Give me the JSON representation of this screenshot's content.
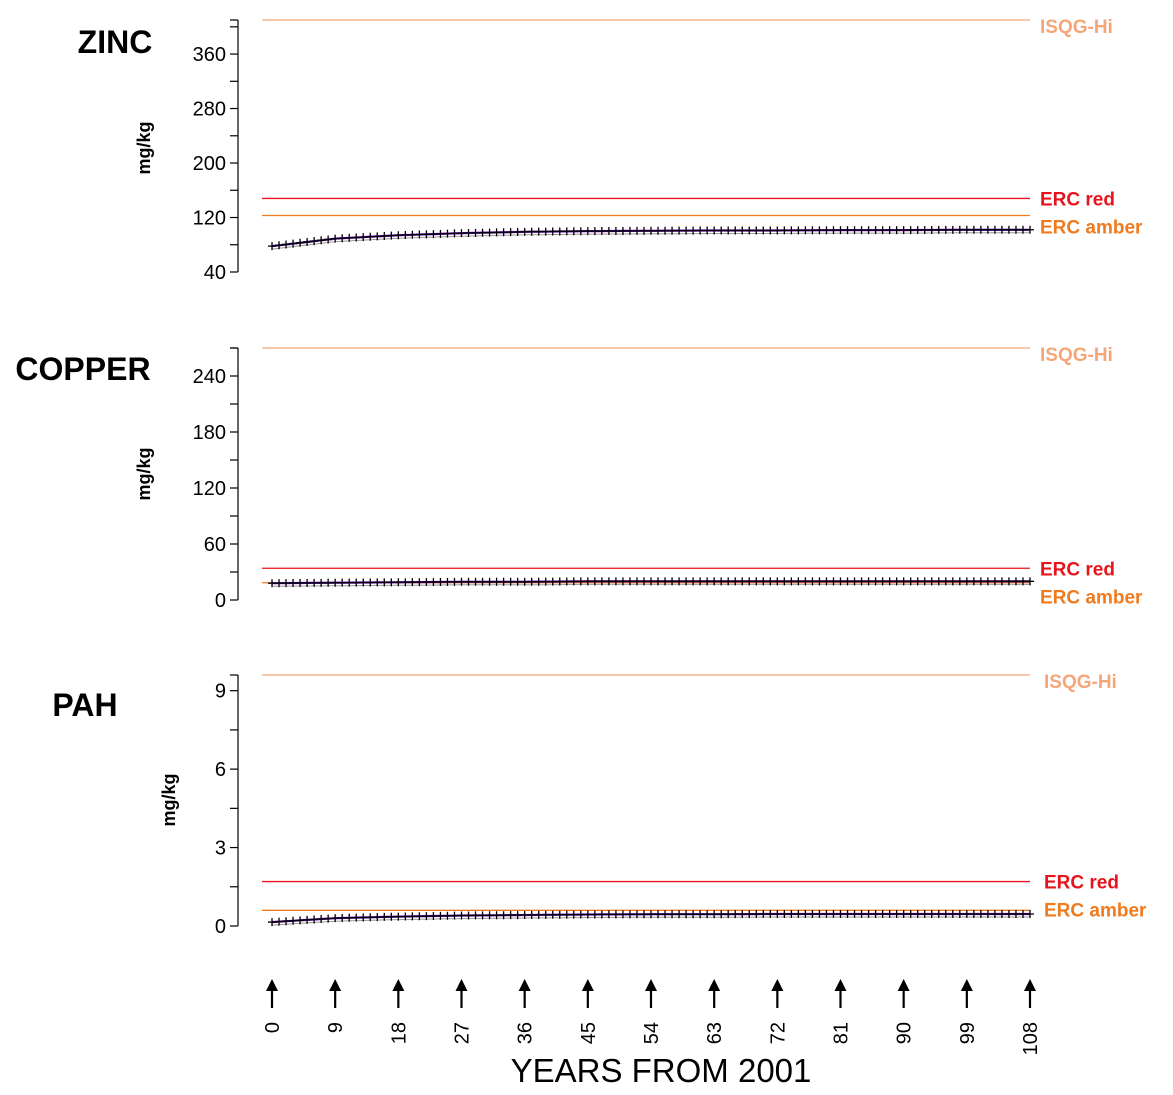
{
  "chart_data": [
    {
      "type": "line",
      "title": "ZINC",
      "ylabel": "mg/kg",
      "ylim": [
        40,
        410
      ],
      "yticks": [
        40,
        120,
        200,
        280,
        360
      ],
      "x": [
        0,
        9,
        18,
        27,
        36,
        45,
        54,
        63,
        72,
        81,
        90,
        99,
        108
      ],
      "series": [
        {
          "values": [
            78,
            89,
            94,
            97,
            99,
            100,
            100.5,
            101,
            101,
            101.5,
            101.5,
            102,
            102
          ]
        }
      ],
      "reference_lines": [
        {
          "label": "ISQG-Hi",
          "value": 410,
          "color": "#f5a678"
        },
        {
          "label": "ERC red",
          "value": 148,
          "color": "#e8141c"
        },
        {
          "label": "ERC amber",
          "value": 123,
          "color": "#f07a1e"
        }
      ]
    },
    {
      "type": "line",
      "title": "COPPER",
      "ylabel": "mg/kg",
      "ylim": [
        0,
        270
      ],
      "yticks": [
        0,
        60,
        120,
        180,
        240
      ],
      "x": [
        0,
        9,
        18,
        27,
        36,
        45,
        54,
        63,
        72,
        81,
        90,
        99,
        108
      ],
      "series": [
        {
          "values": [
            18,
            18.5,
            19,
            19.5,
            19.5,
            20,
            20,
            20,
            20,
            20,
            20,
            20,
            20
          ]
        }
      ],
      "reference_lines": [
        {
          "label": "ISQG-Hi",
          "value": 270,
          "color": "#f5a678"
        },
        {
          "label": "ERC red",
          "value": 34,
          "color": "#e8141c"
        },
        {
          "label": "ERC amber",
          "value": 18.5,
          "color": "#f07a1e"
        }
      ]
    },
    {
      "type": "line",
      "title": "PAH",
      "ylabel": "mg/kg",
      "ylim": [
        0,
        9.6
      ],
      "yticks": [
        0,
        3,
        6,
        9
      ],
      "x": [
        0,
        9,
        18,
        27,
        36,
        45,
        54,
        63,
        72,
        81,
        90,
        99,
        108
      ],
      "series": [
        {
          "values": [
            0.15,
            0.3,
            0.36,
            0.4,
            0.42,
            0.44,
            0.45,
            0.45,
            0.46,
            0.46,
            0.46,
            0.46,
            0.46
          ]
        }
      ],
      "reference_lines": [
        {
          "label": "ISQG-Hi",
          "value": 9.6,
          "color": "#f5a678"
        },
        {
          "label": "ERC red",
          "value": 1.7,
          "color": "#e8141c"
        },
        {
          "label": "ERC amber",
          "value": 0.6,
          "color": "#f07a1e"
        }
      ]
    }
  ],
  "xaxis": {
    "title": "YEARS FROM 2001",
    "ticks": [
      "0",
      "9",
      "18",
      "27",
      "36",
      "45",
      "54",
      "63",
      "72",
      "81",
      "90",
      "99",
      "108"
    ]
  },
  "colors": {
    "line_main": "#1a1aa8",
    "line_accent": "#d400d4",
    "marker": "#000000",
    "band": "#9a9a9a"
  }
}
